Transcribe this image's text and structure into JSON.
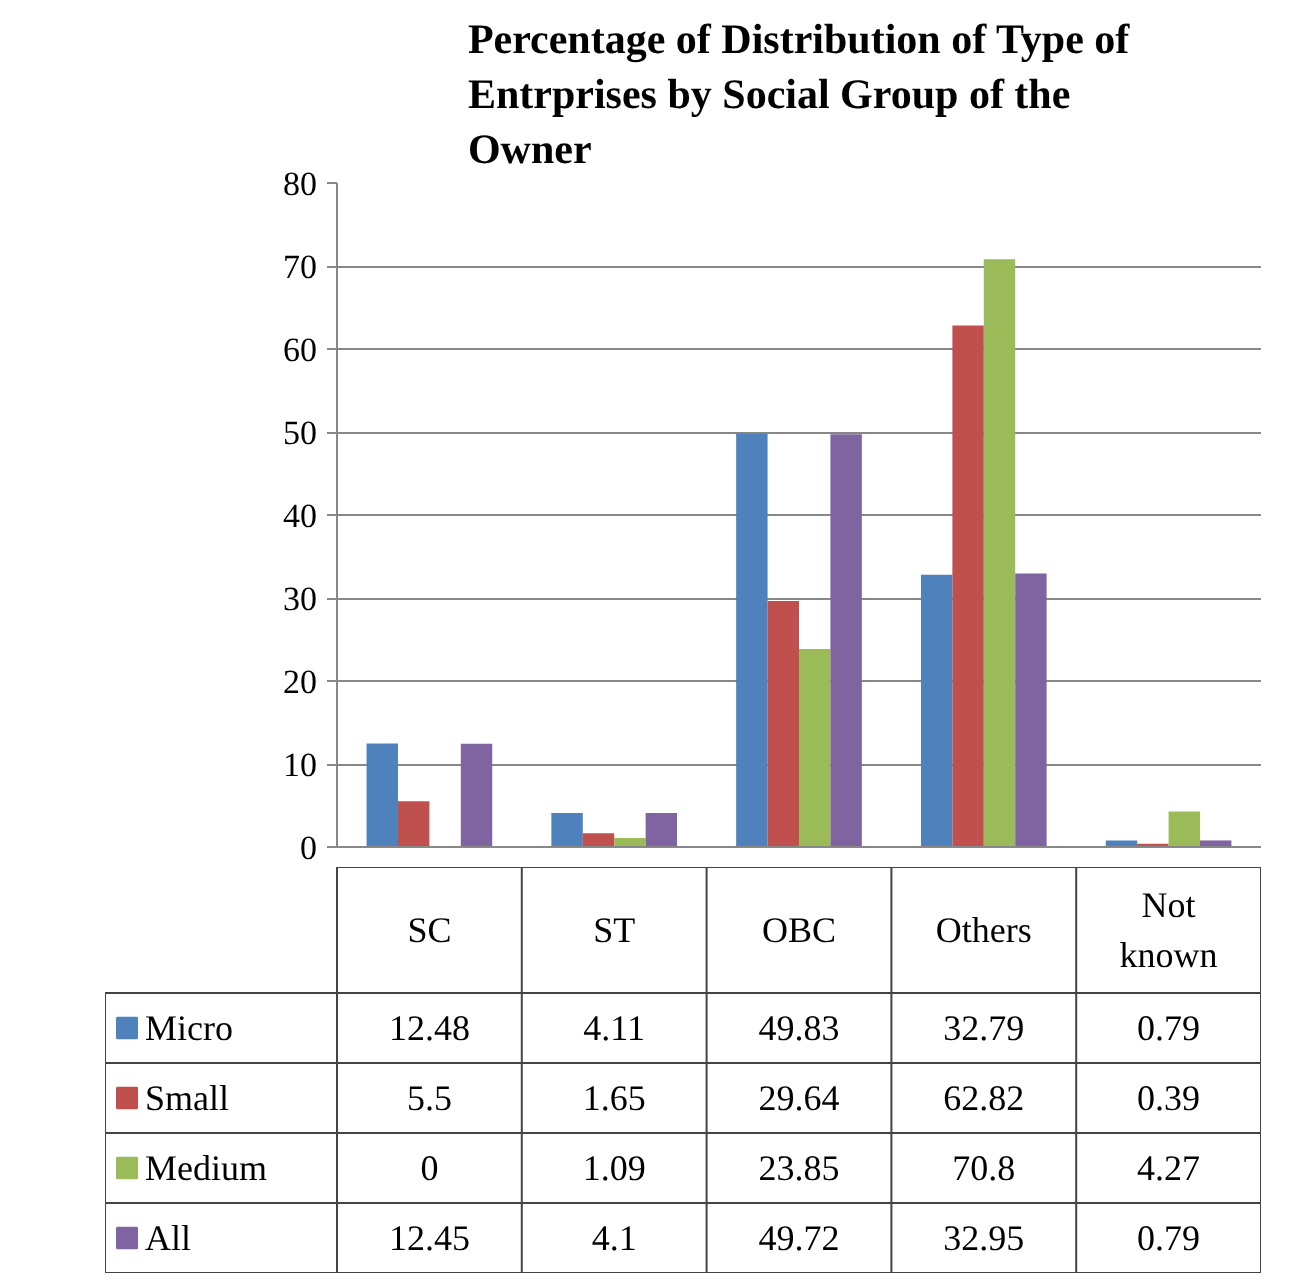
{
  "chart_data": {
    "type": "bar",
    "title": "Percentage of Distribution of Type of Entrprises by Social Group of the Owner",
    "categories": [
      "SC",
      "ST",
      "OBC",
      "Others",
      "Not known"
    ],
    "series": [
      {
        "name": "Micro",
        "color": "#4f81bd",
        "values": [
          12.48,
          4.11,
          49.83,
          32.79,
          0.79
        ]
      },
      {
        "name": "Small",
        "color": "#c0504d",
        "values": [
          5.5,
          1.65,
          29.64,
          62.82,
          0.39
        ]
      },
      {
        "name": "Medium",
        "color": "#9bbb59",
        "values": [
          0,
          1.09,
          23.85,
          70.8,
          4.27
        ]
      },
      {
        "name": "All",
        "color": "#8064a2",
        "values": [
          12.45,
          4.1,
          49.72,
          32.95,
          0.79
        ]
      }
    ],
    "ylim": [
      0,
      80
    ],
    "yticks": [
      0,
      10,
      20,
      30,
      40,
      50,
      60,
      70,
      80
    ],
    "grid": "y",
    "legend": "bottom",
    "data_labels": true
  }
}
